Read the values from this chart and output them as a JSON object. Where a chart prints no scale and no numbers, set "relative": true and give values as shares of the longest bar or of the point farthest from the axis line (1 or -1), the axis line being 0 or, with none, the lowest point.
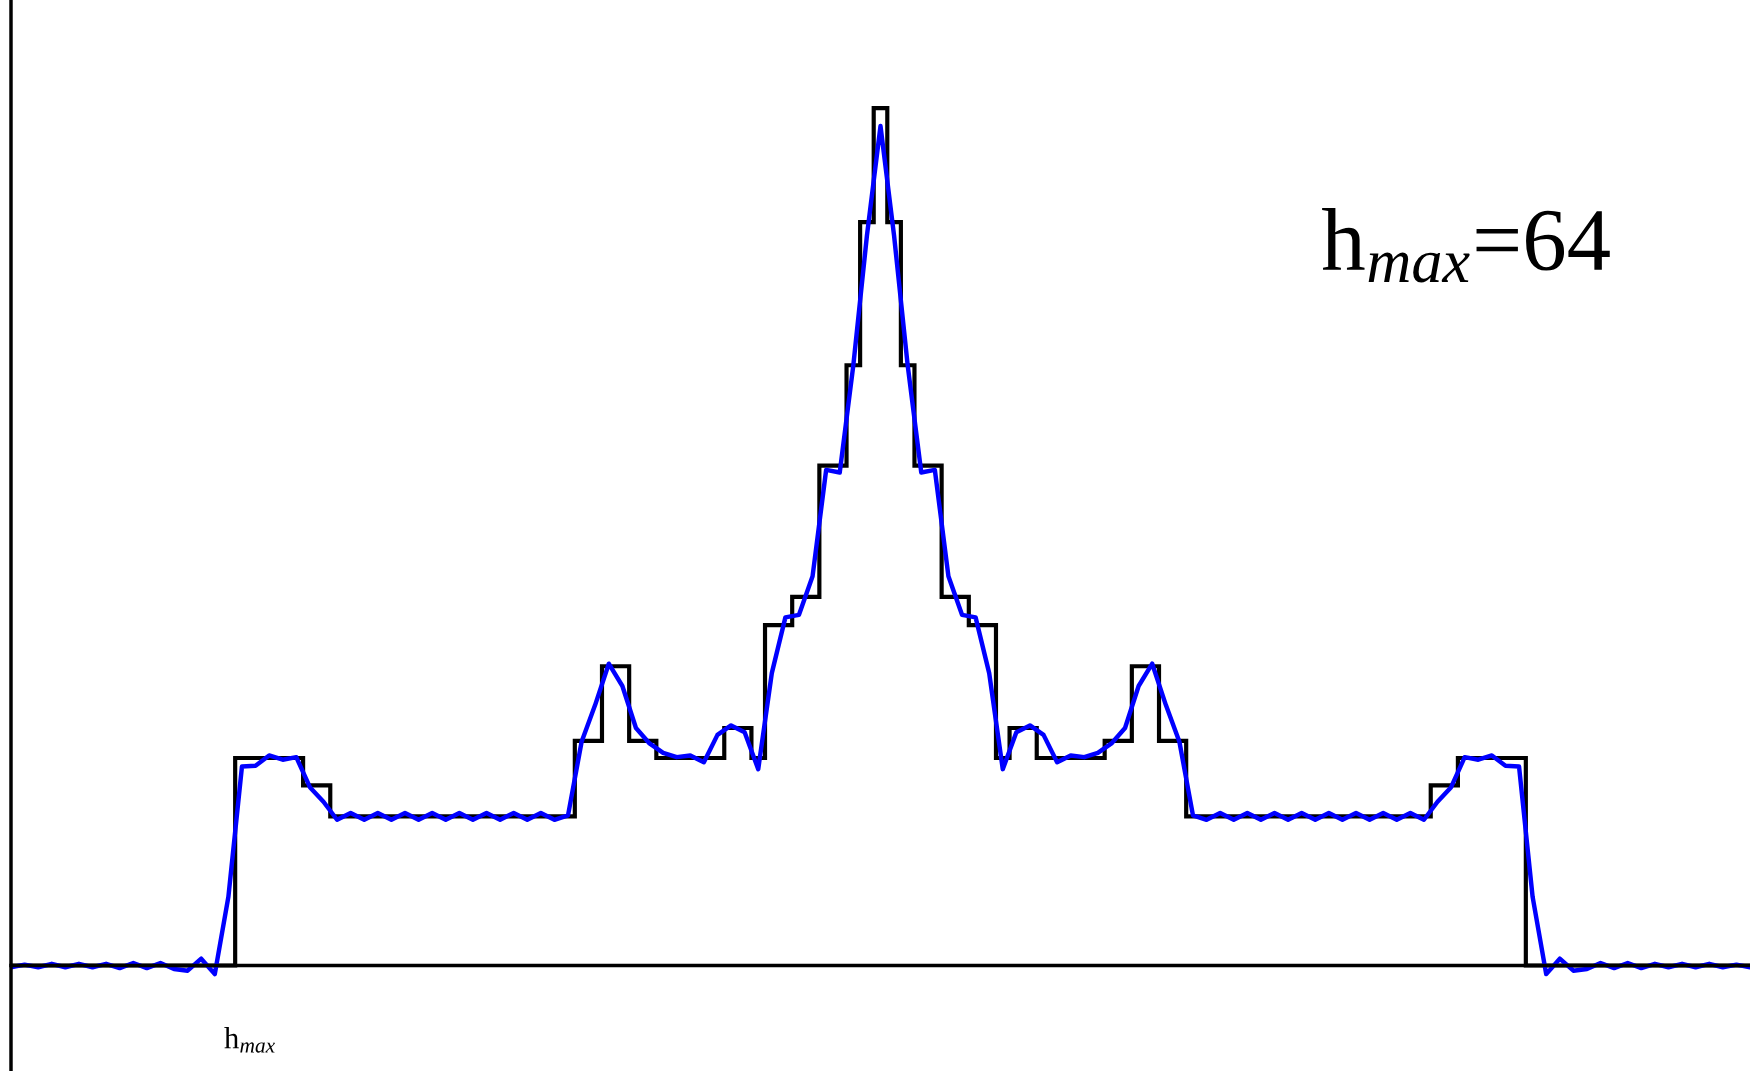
{
  "chart_data": {
    "type": "line",
    "relative": true,
    "annotations": [
      "h$_{max}$=64",
      "h$_{max}$"
    ],
    "categories": [
      null,
      null,
      null,
      null,
      null,
      null,
      null,
      null,
      null,
      null,
      null,
      null,
      null,
      null,
      null,
      null,
      null,
      null,
      null,
      null,
      null,
      null,
      null,
      null,
      null,
      null,
      null,
      null,
      null,
      null,
      null,
      null,
      null,
      null,
      null,
      null,
      null,
      null,
      null,
      null,
      null,
      null,
      null,
      null,
      null,
      null,
      null,
      null,
      null,
      null,
      null,
      null,
      null,
      null,
      null,
      null,
      null,
      null,
      null,
      null,
      null,
      null,
      null,
      null,
      null,
      null,
      null,
      null,
      null,
      null,
      null,
      null,
      null,
      null,
      null,
      null,
      null,
      null,
      null,
      null,
      null,
      null,
      null,
      null,
      null,
      null,
      null,
      null,
      null,
      null,
      null,
      null,
      null,
      null,
      null,
      null,
      null,
      null,
      null,
      null,
      null,
      null,
      null,
      null,
      null,
      null,
      null,
      null,
      null,
      null,
      null,
      null,
      null,
      null,
      null,
      null,
      null,
      null,
      null,
      null,
      null,
      null,
      null,
      null,
      null,
      null,
      null,
      null,
      null
    ],
    "series": [
      {
        "type": "step",
        "color": "#000000",
        "values": [
          0,
          0,
          0,
          0,
          0,
          0,
          0,
          0,
          0,
          0,
          0,
          0,
          0,
          0,
          0,
          0,
          0,
          0.242,
          0.242,
          0.242,
          0.242,
          0.242,
          0.21,
          0.21,
          0.174,
          0.174,
          0.174,
          0.174,
          0.174,
          0.174,
          0.174,
          0.174,
          0.174,
          0.174,
          0.174,
          0.174,
          0.174,
          0.174,
          0.174,
          0.174,
          0.174,
          0.174,
          0.262,
          0.262,
          0.349,
          0.349,
          0.262,
          0.262,
          0.242,
          0.242,
          0.242,
          0.242,
          0.242,
          0.277,
          0.277,
          0.242,
          0.397,
          0.397,
          0.43,
          0.43,
          0.583,
          0.583,
          0.7,
          0.867,
          1,
          0.867,
          0.7,
          0.583,
          0.583,
          0.43,
          0.43,
          0.397,
          0.397,
          0.242,
          0.277,
          0.277,
          0.242,
          0.242,
          0.242,
          0.242,
          0.242,
          0.262,
          0.262,
          0.349,
          0.349,
          0.262,
          0.262,
          0.174,
          0.174,
          0.174,
          0.174,
          0.174,
          0.174,
          0.174,
          0.174,
          0.174,
          0.174,
          0.174,
          0.174,
          0.174,
          0.174,
          0.174,
          0.174,
          0.174,
          0.174,
          0.21,
          0.21,
          0.242,
          0.242,
          0.242,
          0.242,
          0.242,
          0,
          0,
          0,
          0,
          0,
          0,
          0,
          0,
          0,
          0,
          0,
          0,
          0,
          0,
          0,
          0,
          0
        ]
      },
      {
        "color": "#0000ff",
        "values": [
          -0.002,
          0.001,
          -0.002,
          0.002,
          -0.002,
          0.002,
          -0.002,
          0.002,
          -0.003,
          0.003,
          -0.003,
          0.003,
          -0.004,
          -0.006,
          0.008,
          -0.01,
          0.08,
          0.232,
          0.233,
          0.245,
          0.24,
          0.243,
          0.208,
          0.191,
          0.17,
          0.178,
          0.17,
          0.178,
          0.17,
          0.178,
          0.17,
          0.178,
          0.17,
          0.178,
          0.17,
          0.178,
          0.17,
          0.178,
          0.17,
          0.178,
          0.17,
          0.175,
          0.261,
          0.304,
          0.352,
          0.326,
          0.277,
          0.259,
          0.248,
          0.243,
          0.245,
          0.237,
          0.269,
          0.28,
          0.272,
          0.229,
          0.341,
          0.406,
          0.409,
          0.454,
          0.578,
          0.575,
          0.7,
          0.851,
          0.979,
          0.851,
          0.7,
          0.575,
          0.578,
          0.454,
          0.409,
          0.406,
          0.341,
          0.229,
          0.272,
          0.28,
          0.269,
          0.237,
          0.245,
          0.243,
          0.248,
          0.259,
          0.277,
          0.326,
          0.352,
          0.304,
          0.261,
          0.175,
          0.17,
          0.178,
          0.17,
          0.178,
          0.17,
          0.178,
          0.17,
          0.178,
          0.17,
          0.178,
          0.17,
          0.178,
          0.17,
          0.178,
          0.17,
          0.178,
          0.17,
          0.191,
          0.208,
          0.243,
          0.24,
          0.245,
          0.233,
          0.232,
          0.08,
          -0.01,
          0.008,
          -0.006,
          -0.004,
          0.003,
          -0.003,
          0.003,
          -0.003,
          0.002,
          -0.002,
          0.002,
          -0.002,
          0.002,
          -0.002,
          0.001,
          -0.002
        ]
      }
    ]
  }
}
